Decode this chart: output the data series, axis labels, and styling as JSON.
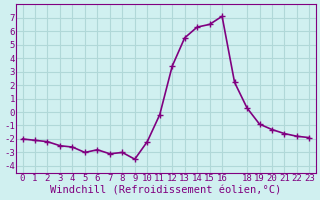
{
  "x": [
    0,
    1,
    2,
    3,
    4,
    5,
    6,
    7,
    8,
    9,
    10,
    11,
    12,
    13,
    14,
    15,
    16,
    17,
    18,
    19,
    20,
    21,
    22,
    23
  ],
  "y": [
    -2.0,
    -2.1,
    -2.2,
    -2.5,
    -2.6,
    -3.0,
    -2.8,
    -3.1,
    -3.0,
    -3.5,
    -2.2,
    -0.2,
    3.4,
    5.5,
    6.3,
    6.5,
    7.1,
    2.2,
    0.3,
    -0.9,
    -1.3,
    -1.6,
    -1.8,
    -1.9
  ],
  "line_color": "#800080",
  "marker": "+",
  "marker_size": 4,
  "linewidth": 1.2,
  "xlabel": "Windchill (Refroidissement éolien,°C)",
  "xlabel_color": "#800080",
  "background_color": "#d0f0f0",
  "grid_color": "#b0d8d8",
  "tick_color": "#800080",
  "spine_color": "#800080",
  "ylim": [
    -4.5,
    8
  ],
  "xlim": [
    -0.5,
    23.5
  ],
  "yticks": [
    -4,
    -3,
    -2,
    -1,
    0,
    1,
    2,
    3,
    4,
    5,
    6,
    7
  ],
  "xticks": [
    0,
    1,
    2,
    3,
    4,
    5,
    6,
    7,
    8,
    9,
    10,
    11,
    12,
    13,
    14,
    15,
    16,
    18,
    19,
    20,
    21,
    22,
    23
  ],
  "xlabel_fontsize": 7.5,
  "tick_fontsize": 6.5
}
